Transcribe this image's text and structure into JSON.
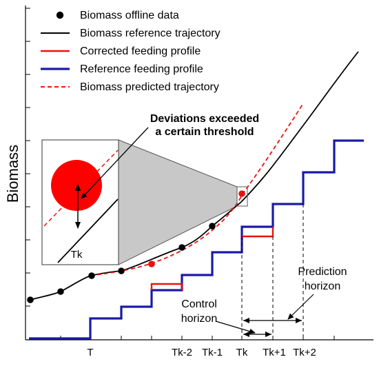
{
  "axis": {
    "ylabel": "Biomass"
  },
  "legend": {
    "items": [
      {
        "label": "Biomass offline data",
        "style": "dot",
        "color": "#000000"
      },
      {
        "label": "Biomass reference trajectory",
        "style": "solid",
        "color": "#000000"
      },
      {
        "label": "Corrected feeding profile",
        "style": "solid",
        "color": "#e8120c"
      },
      {
        "label": "Reference feeding profile",
        "style": "solid",
        "color": "#1a1aa6"
      },
      {
        "label": "Biomass predicted trajectory",
        "style": "dashed",
        "color": "#e8120c"
      }
    ]
  },
  "x_ticks": [
    "T",
    "Tk-2",
    "Tk-1",
    "Tk",
    "Tk+1",
    "Tk+2"
  ],
  "annotations": {
    "deviation_line1": "Deviations exceeded",
    "deviation_line2": "a certain threshold",
    "zoom_tick": "Tk",
    "control_line1": "Control",
    "control_line2": "horizon",
    "prediction_line1": "Prediction",
    "prediction_line2": "horizon"
  },
  "colors": {
    "reference_trajectory": "#000000",
    "predicted_trajectory": "#e8120c",
    "reference_feeding": "#1a1aa6",
    "corrected_feeding": "#e8120c",
    "zoom_fill": "#c8c8c8"
  }
}
